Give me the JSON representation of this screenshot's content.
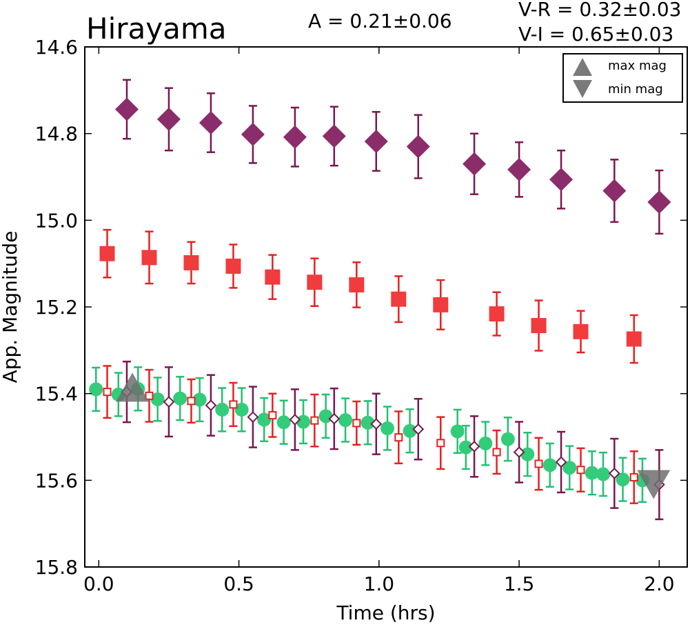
{
  "chart_data": {
    "type": "scatter",
    "title": "Hirayama",
    "annotations": {
      "amplitude": "A  = 0.21±0.06",
      "vr": "V-R = 0.32±0.03",
      "vi": "V-I  = 0.65±0.03"
    },
    "xlabel": "Time (hrs)",
    "ylabel": "App. Magnitude",
    "xlim": [
      -0.05,
      2.1
    ],
    "ylim": [
      15.8,
      14.6
    ],
    "y_inverted": true,
    "grid": false,
    "legend_position": "top-right",
    "legend": [
      {
        "label": "max mag",
        "marker": "triangle-up",
        "color": "#7a7a7a"
      },
      {
        "label": "min mag",
        "marker": "triangle-down",
        "color": "#7a7a7a"
      }
    ],
    "x_ticks": [
      {
        "value": 0.0,
        "label": "0.0"
      },
      {
        "value": 0.5,
        "label": "0.5"
      },
      {
        "value": 1.0,
        "label": "1.0"
      },
      {
        "value": 1.5,
        "label": "1.5"
      },
      {
        "value": 2.0,
        "label": "2.0"
      }
    ],
    "y_ticks": [
      {
        "value": 14.6,
        "label": "14.6"
      },
      {
        "value": 14.8,
        "label": "14.8"
      },
      {
        "value": 15.0,
        "label": "15.0"
      },
      {
        "value": 15.2,
        "label": "15.2"
      },
      {
        "value": 15.4,
        "label": "15.4"
      },
      {
        "value": 15.6,
        "label": "15.6"
      },
      {
        "value": 15.8,
        "label": "15.8"
      }
    ],
    "series": [
      {
        "marker": "diamond-filled",
        "color": "#8b2c6b",
        "error_color": "#7a1650",
        "x": [
          0.1,
          0.25,
          0.4,
          0.55,
          0.7,
          0.84,
          0.99,
          1.14,
          1.34,
          1.5,
          1.65,
          1.84,
          2.0
        ],
        "y": [
          14.744,
          14.767,
          14.775,
          14.802,
          14.808,
          14.806,
          14.818,
          14.83,
          14.87,
          14.883,
          14.906,
          14.932,
          14.958
        ],
        "err": [
          0.068,
          0.072,
          0.068,
          0.066,
          0.068,
          0.068,
          0.068,
          0.073,
          0.07,
          0.063,
          0.067,
          0.072,
          0.073
        ]
      },
      {
        "marker": "square-filled",
        "color": "#f03c3c",
        "error_color": "#e62020",
        "x": [
          0.03,
          0.18,
          0.33,
          0.48,
          0.62,
          0.77,
          0.92,
          1.07,
          1.22,
          1.42,
          1.57,
          1.72,
          1.91
        ],
        "y": [
          15.077,
          15.086,
          15.098,
          15.106,
          15.131,
          15.143,
          15.149,
          15.182,
          15.195,
          15.216,
          15.243,
          15.257,
          15.274
        ],
        "err": [
          0.055,
          0.06,
          0.048,
          0.05,
          0.051,
          0.055,
          0.052,
          0.053,
          0.057,
          0.05,
          0.058,
          0.048,
          0.055
        ]
      },
      {
        "marker": "circle-filled",
        "color": "#33cc7a",
        "error_color": "#22c070",
        "x": [
          -0.01,
          0.07,
          0.14,
          0.21,
          0.29,
          0.36,
          0.44,
          0.51,
          0.59,
          0.66,
          0.73,
          0.81,
          0.88,
          0.96,
          1.03,
          1.11,
          1.28,
          1.31,
          1.38,
          1.46,
          1.53,
          1.61,
          1.68,
          1.76,
          1.8,
          1.87,
          1.94
        ],
        "y": [
          15.39,
          15.402,
          15.389,
          15.413,
          15.411,
          15.414,
          15.437,
          15.437,
          15.46,
          15.466,
          15.465,
          15.452,
          15.461,
          15.467,
          15.48,
          15.486,
          15.487,
          15.524,
          15.515,
          15.505,
          15.54,
          15.565,
          15.571,
          15.583,
          15.586,
          15.598,
          15.6
        ],
        "err": [
          0.05,
          0.05,
          0.05,
          0.05,
          0.05,
          0.05,
          0.05,
          0.05,
          0.05,
          0.05,
          0.05,
          0.05,
          0.05,
          0.05,
          0.05,
          0.05,
          0.05,
          0.05,
          0.05,
          0.05,
          0.05,
          0.05,
          0.05,
          0.05,
          0.05,
          0.05,
          0.05
        ]
      },
      {
        "marker": "square-open",
        "color": "#e62020",
        "error_color": "#e62020",
        "x": [
          0.03,
          0.18,
          0.33,
          0.48,
          0.62,
          0.77,
          0.92,
          1.07,
          1.22,
          1.42,
          1.57,
          1.72,
          1.91
        ],
        "y": [
          15.396,
          15.405,
          15.417,
          15.425,
          15.45,
          15.462,
          15.468,
          15.501,
          15.514,
          15.535,
          15.562,
          15.576,
          15.593
        ],
        "err": [
          0.06,
          0.06,
          0.05,
          0.05,
          0.05,
          0.06,
          0.05,
          0.06,
          0.06,
          0.05,
          0.06,
          0.05,
          0.06
        ]
      },
      {
        "marker": "diamond-open",
        "color": "#7a1650",
        "error_color": "#7a1650",
        "x": [
          0.1,
          0.25,
          0.4,
          0.55,
          0.7,
          0.84,
          0.99,
          1.14,
          1.34,
          1.5,
          1.65,
          1.84,
          2.0
        ],
        "y": [
          15.396,
          15.419,
          15.427,
          15.454,
          15.46,
          15.458,
          15.47,
          15.482,
          15.522,
          15.535,
          15.558,
          15.584,
          15.61
        ],
        "err": [
          0.07,
          0.08,
          0.07,
          0.07,
          0.07,
          0.07,
          0.07,
          0.07,
          0.07,
          0.07,
          0.07,
          0.08,
          0.08
        ]
      },
      {
        "marker": "triangle-up",
        "color": "#6e6e6e",
        "x": [
          0.12
        ],
        "y": [
          15.39
        ]
      },
      {
        "marker": "triangle-down",
        "color": "#6e6e6e",
        "x": [
          1.98
        ],
        "y": [
          15.605
        ]
      }
    ]
  }
}
